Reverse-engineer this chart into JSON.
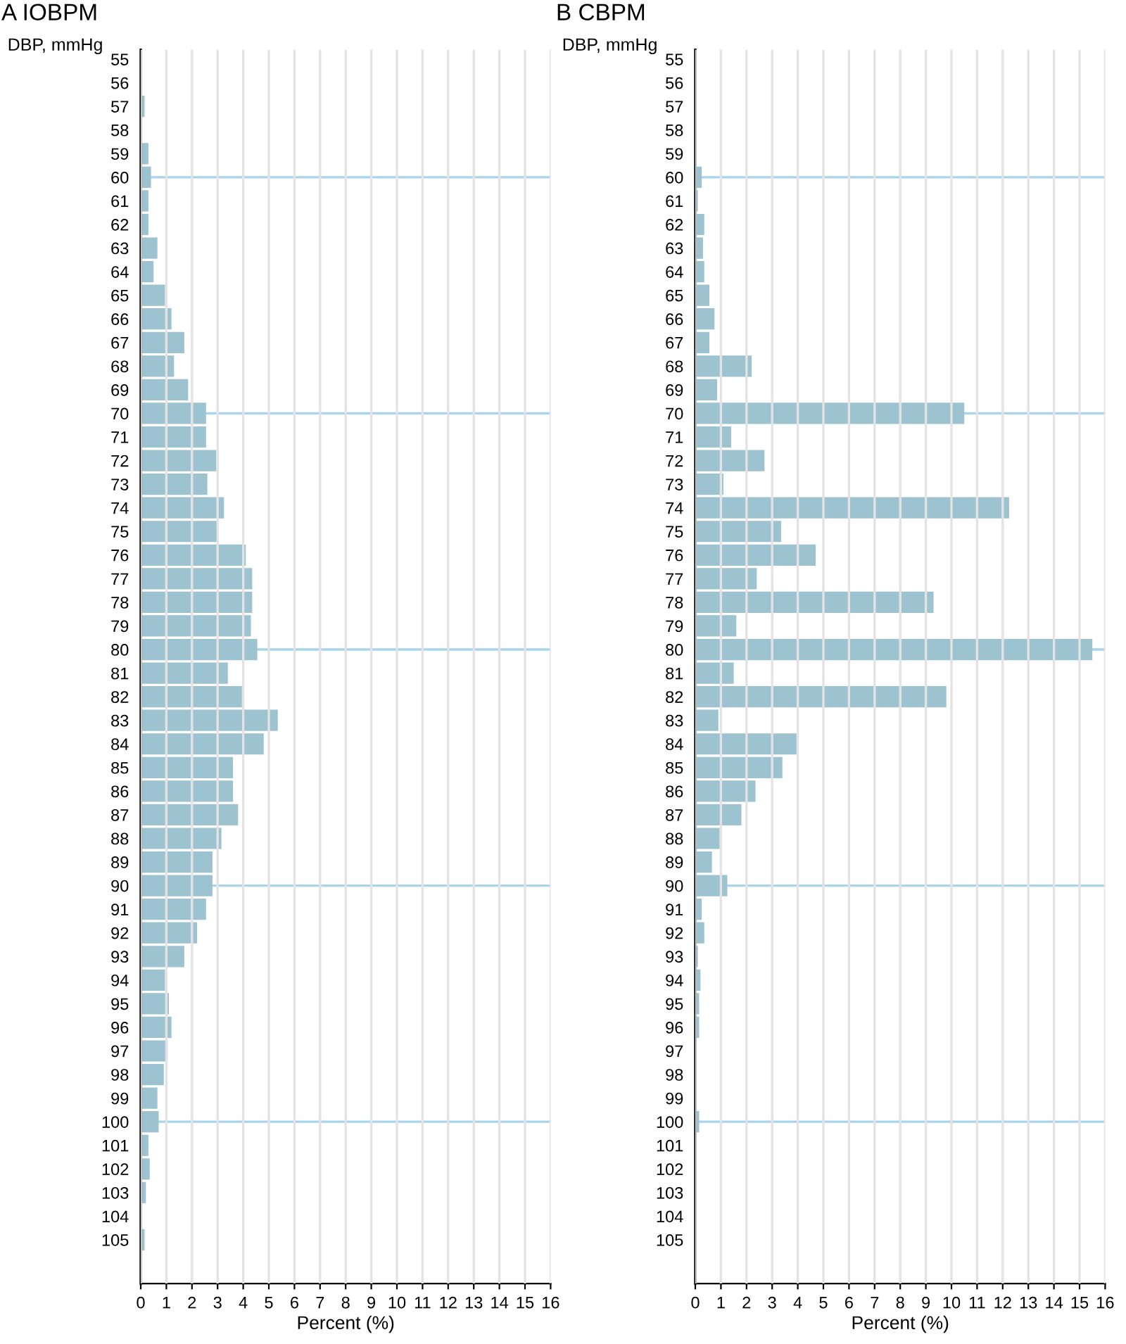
{
  "chart_data": [
    {
      "type": "bar",
      "orientation": "horizontal",
      "title": "A IOBPM",
      "ylabel": "DBP, mmHg",
      "xlabel": "Percent (%)",
      "categories": [
        "55",
        "56",
        "57",
        "58",
        "59",
        "60",
        "61",
        "62",
        "63",
        "64",
        "65",
        "66",
        "67",
        "68",
        "69",
        "70",
        "71",
        "72",
        "73",
        "74",
        "75",
        "76",
        "77",
        "78",
        "79",
        "80",
        "81",
        "82",
        "83",
        "84",
        "85",
        "86",
        "87",
        "88",
        "89",
        "90",
        "91",
        "92",
        "93",
        "94",
        "95",
        "96",
        "97",
        "98",
        "99",
        "100",
        "101",
        "102",
        "103",
        "104",
        "105"
      ],
      "values": [
        0,
        0,
        0.15,
        0,
        0.3,
        0.4,
        0.3,
        0.3,
        0.65,
        0.5,
        0.95,
        1.2,
        1.7,
        1.3,
        1.85,
        2.55,
        2.55,
        2.95,
        2.6,
        3.25,
        3.0,
        4.1,
        4.35,
        4.35,
        4.3,
        4.55,
        3.4,
        3.95,
        5.35,
        4.8,
        3.6,
        3.6,
        3.8,
        3.15,
        2.8,
        2.8,
        2.55,
        2.2,
        1.7,
        0.95,
        1.1,
        1.2,
        1.05,
        0.9,
        0.65,
        0.7,
        0.3,
        0.35,
        0.2,
        0,
        0.15
      ],
      "color": "#9dc3d0",
      "xlim": [
        0,
        16
      ],
      "xticks": [
        0,
        1,
        2,
        3,
        4,
        5,
        6,
        7,
        8,
        9,
        10,
        11,
        12,
        13,
        14,
        15,
        16
      ],
      "grid": "x",
      "ref_lines": [
        {
          "axis": "y",
          "value": "60",
          "color": "#a8d4ec"
        },
        {
          "axis": "y",
          "value": "70",
          "color": "#a8d4ec"
        },
        {
          "axis": "y",
          "value": "80",
          "color": "#a8d4ec"
        },
        {
          "axis": "y",
          "value": "90",
          "color": "#a8d4ec"
        },
        {
          "axis": "y",
          "value": "100",
          "color": "#a8d4ec"
        }
      ]
    },
    {
      "type": "bar",
      "orientation": "horizontal",
      "title": "B CBPM",
      "ylabel": "DBP, mmHg",
      "xlabel": "Percent (%)",
      "categories": [
        "55",
        "56",
        "57",
        "58",
        "59",
        "60",
        "61",
        "62",
        "63",
        "64",
        "65",
        "66",
        "67",
        "68",
        "69",
        "70",
        "71",
        "72",
        "73",
        "74",
        "75",
        "76",
        "77",
        "78",
        "79",
        "80",
        "81",
        "82",
        "83",
        "84",
        "85",
        "86",
        "87",
        "88",
        "89",
        "90",
        "91",
        "92",
        "93",
        "94",
        "95",
        "96",
        "97",
        "98",
        "99",
        "100",
        "101",
        "102",
        "103",
        "104",
        "105"
      ],
      "values": [
        0,
        0,
        0,
        0,
        0,
        0.25,
        0.1,
        0.35,
        0.3,
        0.35,
        0.55,
        0.75,
        0.55,
        2.2,
        0.85,
        10.5,
        1.4,
        2.7,
        1.1,
        12.25,
        3.35,
        4.7,
        2.4,
        9.3,
        1.6,
        15.5,
        1.5,
        9.8,
        0.9,
        3.95,
        3.4,
        2.35,
        1.8,
        0.95,
        0.65,
        1.25,
        0.25,
        0.35,
        0.1,
        0.2,
        0.15,
        0.15,
        0,
        0,
        0,
        0.15,
        0,
        0,
        0,
        0,
        0
      ],
      "color": "#9dc3d0",
      "xlim": [
        0,
        16
      ],
      "xticks": [
        0,
        1,
        2,
        3,
        4,
        5,
        6,
        7,
        8,
        9,
        10,
        11,
        12,
        13,
        14,
        15,
        16
      ],
      "grid": "x",
      "ref_lines": [
        {
          "axis": "y",
          "value": "60",
          "color": "#a8d4ec"
        },
        {
          "axis": "y",
          "value": "70",
          "color": "#a8d4ec"
        },
        {
          "axis": "y",
          "value": "80",
          "color": "#a8d4ec"
        },
        {
          "axis": "y",
          "value": "90",
          "color": "#a8d4ec"
        },
        {
          "axis": "y",
          "value": "100",
          "color": "#a8d4ec"
        }
      ]
    }
  ]
}
